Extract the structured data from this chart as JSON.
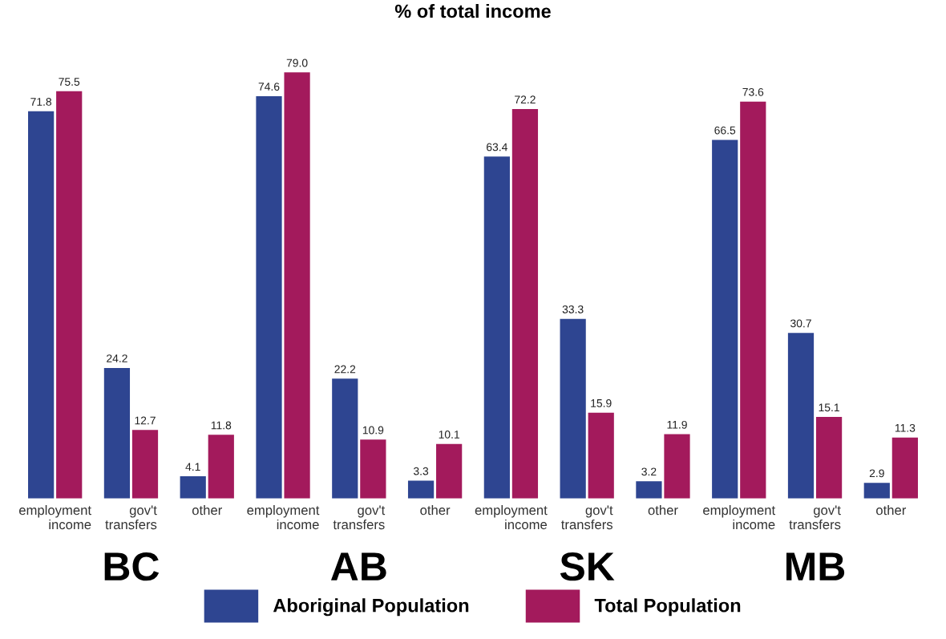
{
  "chart_data": {
    "type": "bar",
    "title": "% of total income",
    "categories": [
      "employment\nincome",
      "gov't\ntransfers",
      "other",
      "employment\nincome",
      "gov't\ntransfers",
      "other",
      "employment\nincome",
      "gov't\ntransfers",
      "other",
      "employment\nincome",
      "gov't\ntransfers",
      "other"
    ],
    "annotations": [
      "BC",
      "AB",
      "SK",
      "MB"
    ],
    "legend": "bottom",
    "tick_labels": "x",
    "grid": false,
    "series": [
      {
        "name": "Aboriginal Population",
        "color": "#2e4591",
        "values": [
          71.8,
          24.2,
          4.1,
          74.6,
          22.2,
          3.3,
          63.4,
          33.3,
          3.2,
          66.5,
          30.7,
          2.9
        ],
        "value_labels": [
          "71.8",
          "24.2",
          "4.1",
          "74.6",
          "22.2",
          "3.3",
          "63.4",
          "33.3",
          "3.2",
          "66.5",
          "30.7",
          "2.9"
        ]
      },
      {
        "name": "Total Population",
        "color": "#a31a5c",
        "values": [
          75.5,
          12.7,
          11.8,
          79.0,
          10.9,
          10.1,
          72.2,
          15.9,
          11.9,
          73.6,
          15.1,
          11.3
        ],
        "value_labels": [
          "75.5",
          "12.7",
          "11.8",
          "79.0",
          "10.9",
          "10.1",
          "72.2",
          "15.9",
          "11.9",
          "73.6",
          "15.1",
          "11.3"
        ]
      }
    ]
  }
}
